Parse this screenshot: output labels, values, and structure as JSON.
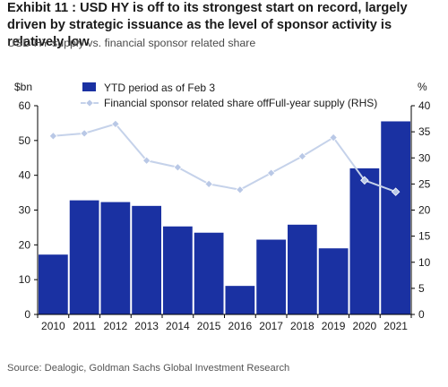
{
  "title": "Exhibit 11 : USD HY is off to its strongest start on record, largely driven by strategic issuance as the level of sponsor activity is relatively low",
  "subtitle": "USD HY supply vs. financial sponsor related share",
  "source": "Source: Dealogic, Goldman Sachs Global Investment Research",
  "colors": {
    "bar": "#1a31a2",
    "line": "#c5d2ea",
    "marker": "#b9c8e6"
  },
  "chart_data": {
    "type": "bar",
    "categories": [
      "2010",
      "2011",
      "2012",
      "2013",
      "2014",
      "2015",
      "2016",
      "2017",
      "2018",
      "2019",
      "2020",
      "2021"
    ],
    "series": [
      {
        "name": "YTD period as of Feb 3",
        "type": "bar",
        "axis": "left",
        "values": [
          17.2,
          32.8,
          32.3,
          31.2,
          25.3,
          23.5,
          8.2,
          21.5,
          25.8,
          19.0,
          42.0,
          55.5
        ]
      },
      {
        "name": "Financial sponsor related share offFull-year supply (RHS)",
        "type": "line",
        "axis": "right",
        "values": [
          34.2,
          34.7,
          36.5,
          29.5,
          28.2,
          25.0,
          23.9,
          27.1,
          30.3,
          33.9,
          25.7,
          23.5
        ]
      }
    ],
    "left_axis": {
      "label": "$bn",
      "ylim": [
        0,
        60
      ],
      "ticks": [
        0,
        10,
        20,
        30,
        40,
        50,
        60
      ]
    },
    "right_axis": {
      "label": "%",
      "ylim": [
        0,
        40
      ],
      "ticks": [
        0,
        5,
        10,
        15,
        20,
        25,
        30,
        35,
        40
      ]
    },
    "grid": false,
    "legend_position": "top"
  }
}
